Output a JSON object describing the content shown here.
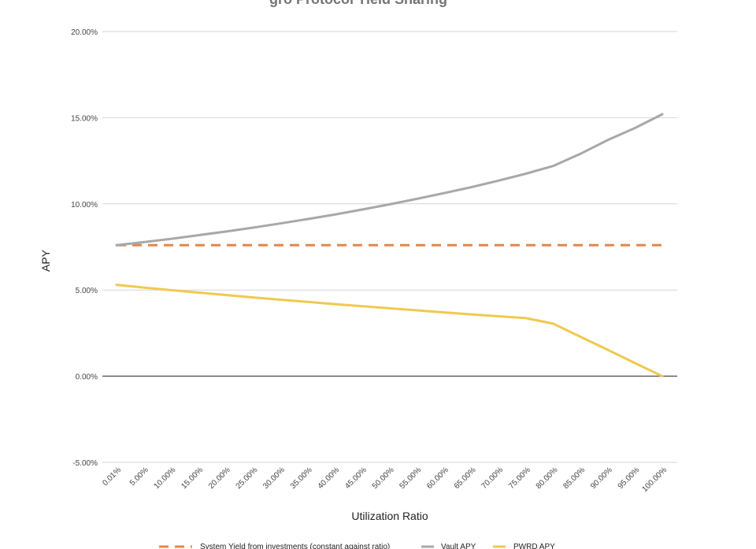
{
  "chart_data": {
    "type": "line",
    "title": "gro Protocol Yield Sharing",
    "xlabel": "Utilization Ratio",
    "ylabel": "APY",
    "ylim": [
      -5,
      20
    ],
    "yticks": [
      "-5.00%",
      "0.00%",
      "5.00%",
      "10.00%",
      "15.00%",
      "20.00%"
    ],
    "grid": true,
    "legend_position": "bottom",
    "categories": [
      "0.01%",
      "5.00%",
      "10.00%",
      "15.00%",
      "20.00%",
      "25.00%",
      "30.00%",
      "35.00%",
      "40.00%",
      "45.00%",
      "50.00%",
      "55.00%",
      "60.00%",
      "65.00%",
      "70.00%",
      "75.00%",
      "80.00%",
      "85.00%",
      "90.00%",
      "95.00%",
      "100.00%"
    ],
    "series": [
      {
        "name": "System Yield from investments (constant against ratio)",
        "color": "#e0884a",
        "dashed": true,
        "values": [
          7.6,
          7.6,
          7.6,
          7.6,
          7.6,
          7.6,
          7.6,
          7.6,
          7.6,
          7.6,
          7.6,
          7.6,
          7.6,
          7.6,
          7.6,
          7.6,
          7.6,
          7.6,
          7.6,
          7.6,
          7.6
        ]
      },
      {
        "name": "Vault APY",
        "color": "#a8a8a8",
        "dashed": false,
        "values": [
          7.6,
          7.78,
          7.97,
          8.18,
          8.39,
          8.62,
          8.86,
          9.12,
          9.38,
          9.67,
          9.97,
          10.29,
          10.62,
          10.97,
          11.35,
          11.75,
          12.2,
          12.9,
          13.7,
          14.4,
          15.2
        ]
      },
      {
        "name": "PWRD APY",
        "color": "#f0c94f",
        "dashed": false,
        "values": [
          5.3,
          5.14,
          4.99,
          4.85,
          4.71,
          4.57,
          4.44,
          4.31,
          4.18,
          4.06,
          3.94,
          3.82,
          3.7,
          3.59,
          3.48,
          3.37,
          3.05,
          2.29,
          1.53,
          0.76,
          0.0
        ]
      }
    ]
  }
}
